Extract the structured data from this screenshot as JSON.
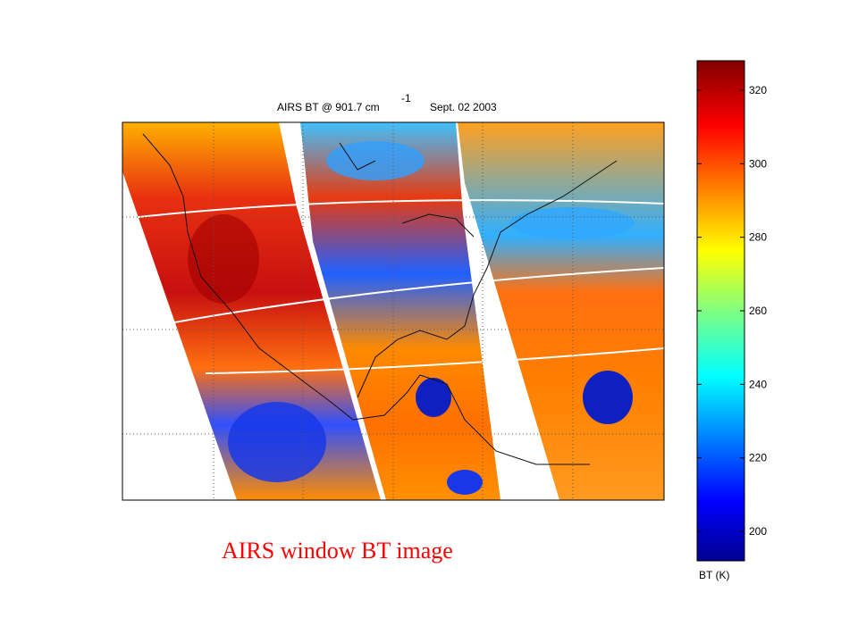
{
  "map": {
    "title": "AIRS BT @ 901.7 cm",
    "title_superscript": "-1",
    "date": "Sept. 02 2003"
  },
  "colorbar": {
    "label": "BT (K)",
    "lim": [
      192,
      328
    ],
    "ticks": [
      200,
      220,
      240,
      260,
      280,
      300,
      320
    ]
  },
  "caption": "AIRS window BT image"
}
